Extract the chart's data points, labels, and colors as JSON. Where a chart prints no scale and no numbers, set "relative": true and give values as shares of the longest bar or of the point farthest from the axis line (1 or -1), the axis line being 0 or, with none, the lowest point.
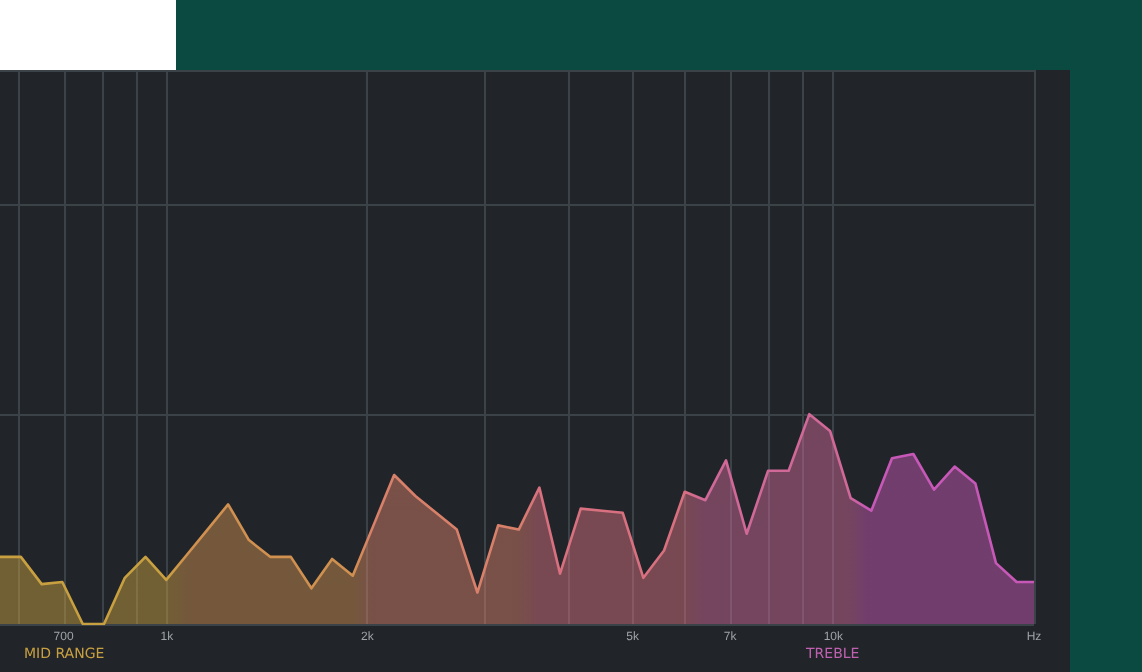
{
  "chart_data": {
    "type": "area",
    "relative": true,
    "log": "x",
    "grid": true,
    "marker": "none",
    "line_style": "solid",
    "xlim": [
      562,
      20000
    ],
    "xticks": [
      {
        "value": 600,
        "label": null
      },
      {
        "value": 700,
        "label": "700"
      },
      {
        "value": 800,
        "label": null
      },
      {
        "value": 900,
        "label": null
      },
      {
        "value": 1000,
        "label": "1k"
      },
      {
        "value": 2000,
        "label": "2k"
      },
      {
        "value": 3000,
        "label": null
      },
      {
        "value": 4000,
        "label": null
      },
      {
        "value": 5000,
        "label": "5k"
      },
      {
        "value": 6000,
        "label": null
      },
      {
        "value": 7000,
        "label": "7k"
      },
      {
        "value": 8000,
        "label": null
      },
      {
        "value": 9000,
        "label": null
      },
      {
        "value": 10000,
        "label": "10k"
      },
      {
        "value": 20000,
        "label": "Hz"
      }
    ],
    "x": [
      562,
      604,
      649,
      697,
      748,
      805,
      865,
      929,
      998,
      1072,
      1151,
      1236,
      1328,
      1429,
      1535,
      1648,
      1770,
      1901,
      2042,
      2193,
      2360,
      2535,
      2723,
      2924,
      3141,
      3373,
      3622,
      3890,
      4178,
      4498,
      4831,
      5188,
      5572,
      5984,
      6427,
      6902,
      7413,
      7980,
      8570,
      9204,
      9886,
      10617,
      11402,
      12246,
      13183,
      14158,
      15205,
      16331,
      17539,
      18836,
      20000
    ],
    "values": [
      0.32,
      0.32,
      0.19,
      0.2,
      0,
      0,
      0.22,
      0.32,
      0.21,
      0.33,
      0.45,
      0.57,
      0.4,
      0.32,
      0.32,
      0.17,
      0.31,
      0.23,
      0.47,
      0.71,
      0.61,
      0.53,
      0.45,
      0.15,
      0.47,
      0.45,
      0.65,
      0.24,
      0.55,
      0.54,
      0.53,
      0.22,
      0.35,
      0.63,
      0.59,
      0.78,
      0.43,
      0.73,
      0.73,
      1,
      0.92,
      0.6,
      0.54,
      0.79,
      0.81,
      0.64,
      0.75,
      0.67,
      0.29,
      0.2,
      0.2
    ],
    "colors": [
      "#c9a040",
      "#c9a040",
      "#c9a040",
      "#c9a040",
      "#c9a040",
      "#c9a040",
      "#c9a040",
      "#c9a040",
      "#c9a040",
      "#d0904f",
      "#d0904f",
      "#d0904f",
      "#d0904f",
      "#d0904f",
      "#d0904f",
      "#d0904f",
      "#d0904f",
      "#d0904f",
      "#d8806a",
      "#d8806a",
      "#d8806a",
      "#d8806a",
      "#d8806a",
      "#d8806a",
      "#d8806a",
      "#d8806a",
      "#d8707f",
      "#d8707f",
      "#d8707f",
      "#d8707f",
      "#d8707f",
      "#d8707f",
      "#d8707f",
      "#d8707f",
      "#d06898",
      "#d06898",
      "#d06898",
      "#d06898",
      "#d06898",
      "#d06898",
      "#d06898",
      "#d06898",
      "#c858b8",
      "#c858b8",
      "#c858b8",
      "#c858b8",
      "#c858b8",
      "#c858b8",
      "#c858b8",
      "#c858b8",
      "#c858b8"
    ],
    "annotations": [
      "MID RANGE",
      "TREBLE"
    ]
  }
}
